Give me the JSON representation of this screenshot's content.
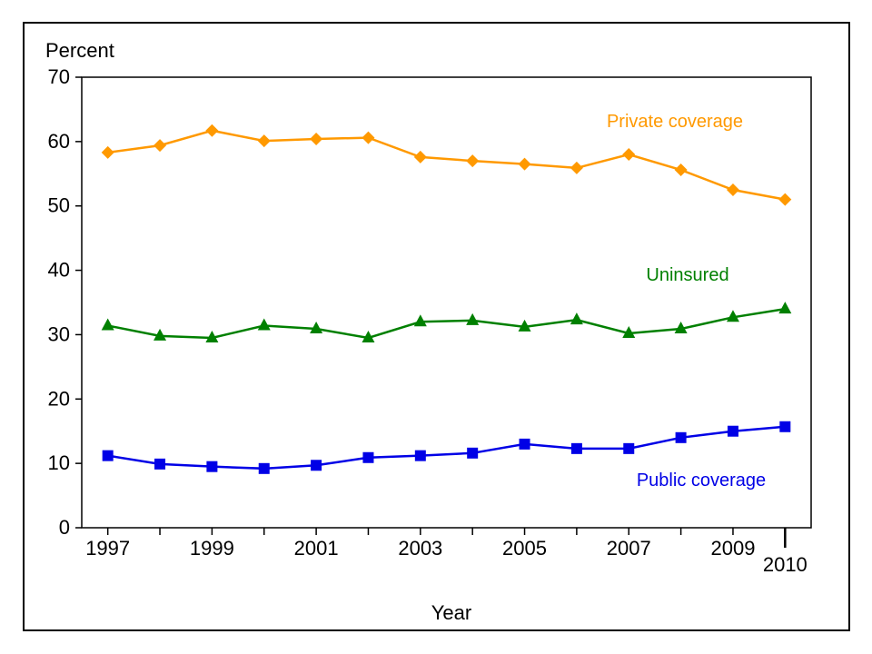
{
  "chart_data": {
    "type": "line",
    "title": "",
    "ylabel": "Percent",
    "xlabel": "Year",
    "x": [
      1997,
      1998,
      1999,
      2000,
      2001,
      2002,
      2003,
      2004,
      2005,
      2006,
      2007,
      2008,
      2009,
      2010
    ],
    "x_tick_labels": [
      "1997",
      "1999",
      "2001",
      "2003",
      "2005",
      "2007",
      "2009",
      "2010"
    ],
    "x_tick_values": [
      1997,
      1999,
      2001,
      2003,
      2005,
      2007,
      2009,
      2010
    ],
    "y_ticks": [
      0,
      10,
      20,
      30,
      40,
      50,
      60,
      70
    ],
    "ylim": [
      0,
      70
    ],
    "xlim": [
      1996.5,
      2010.5
    ],
    "grid": false,
    "series": [
      {
        "name": "Private coverage",
        "color": "#FF9900",
        "marker": "diamond",
        "values": [
          58.3,
          59.4,
          61.7,
          60.1,
          60.4,
          60.6,
          57.6,
          57.0,
          56.5,
          55.9,
          58.0,
          55.6,
          52.5,
          51.0
        ]
      },
      {
        "name": "Uninsured",
        "color": "#008000",
        "marker": "triangle",
        "values": [
          31.4,
          29.8,
          29.5,
          31.4,
          30.9,
          29.5,
          32.0,
          32.2,
          31.2,
          32.3,
          30.2,
          30.9,
          32.7,
          34.0
        ]
      },
      {
        "name": "Public coverage",
        "color": "#0000E6",
        "marker": "square",
        "values": [
          11.2,
          9.9,
          9.5,
          9.2,
          9.7,
          10.9,
          11.2,
          11.6,
          13.0,
          12.3,
          12.3,
          14.0,
          15.0,
          15.7
        ]
      }
    ]
  }
}
